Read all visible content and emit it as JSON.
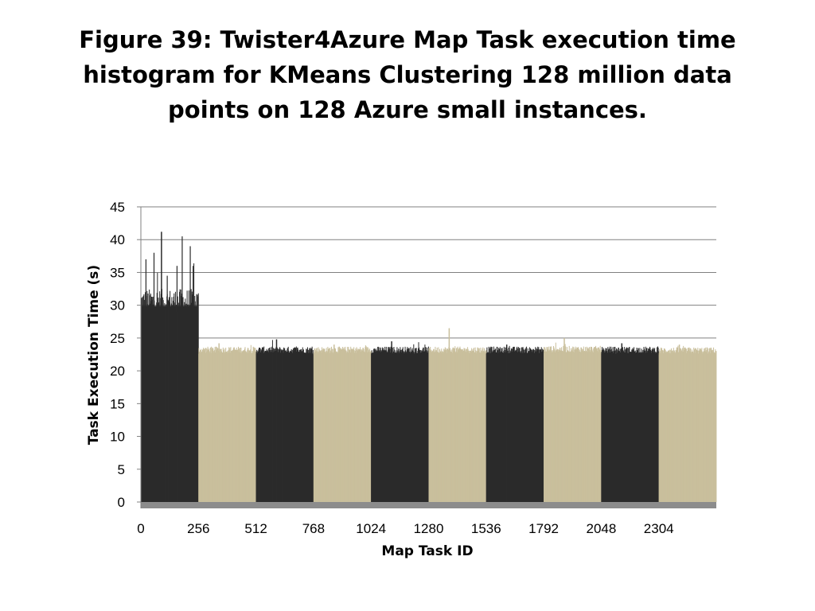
{
  "title": "Figure 39: Twister4Azure Map Task execution time histogram for KMeans Clustering 128 million data points on 128 Azure small instances.",
  "chart_data": {
    "type": "bar",
    "xlabel": "Map Task ID",
    "ylabel": "Task Execution Time (s)",
    "ylim": [
      0,
      45
    ],
    "y_ticks": [
      0,
      5,
      10,
      15,
      20,
      25,
      30,
      35,
      40,
      45
    ],
    "xlim": [
      0,
      2560
    ],
    "x_ticks": [
      0,
      256,
      512,
      768,
      1024,
      1280,
      1536,
      1792,
      2048,
      2304
    ],
    "grid": "horizontal",
    "legend": "none",
    "colors": {
      "dark": "#2b2b2b",
      "light": "#c9bf9c",
      "baseline": "#8c8c8c",
      "grid": "#808080"
    },
    "iterations": [
      {
        "start": 0,
        "end": 256,
        "color": "dark",
        "typical": 30.5,
        "min": 27.2,
        "max": 41.2
      },
      {
        "start": 256,
        "end": 512,
        "color": "light",
        "typical": 23.2,
        "min": 22.5,
        "max": 24.2
      },
      {
        "start": 512,
        "end": 768,
        "color": "dark",
        "typical": 23.2,
        "min": 22.4,
        "max": 24.8
      },
      {
        "start": 768,
        "end": 1024,
        "color": "light",
        "typical": 23.2,
        "min": 22.5,
        "max": 24.0
      },
      {
        "start": 1024,
        "end": 1280,
        "color": "dark",
        "typical": 23.2,
        "min": 22.4,
        "max": 24.5
      },
      {
        "start": 1280,
        "end": 1536,
        "color": "light",
        "typical": 23.2,
        "min": 22.5,
        "max": 26.5
      },
      {
        "start": 1536,
        "end": 1792,
        "color": "dark",
        "typical": 23.2,
        "min": 22.4,
        "max": 24.0
      },
      {
        "start": 1792,
        "end": 2048,
        "color": "light",
        "typical": 23.3,
        "min": 22.5,
        "max": 25.0
      },
      {
        "start": 2048,
        "end": 2304,
        "color": "dark",
        "typical": 23.2,
        "min": 22.4,
        "max": 24.2
      },
      {
        "start": 2304,
        "end": 2560,
        "color": "light",
        "typical": 23.1,
        "min": 22.5,
        "max": 24.0
      }
    ]
  }
}
